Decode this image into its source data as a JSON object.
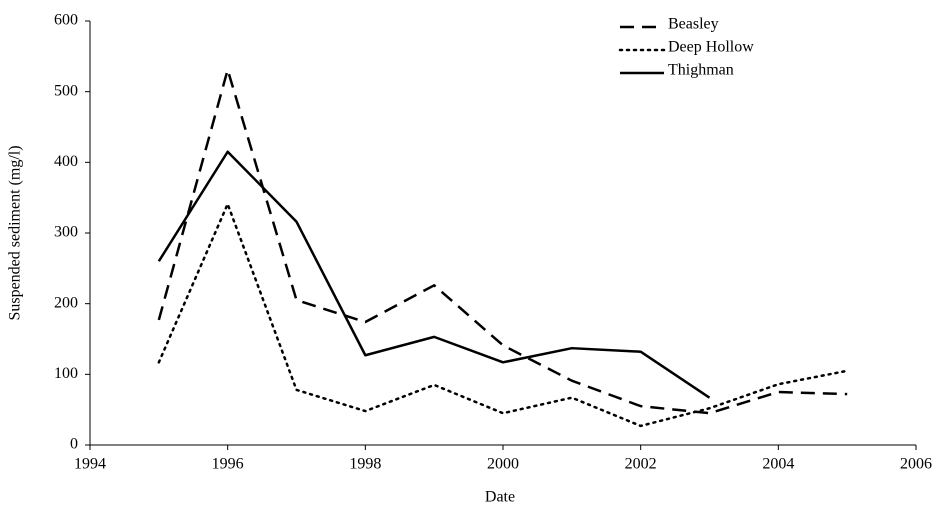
{
  "chart_data": {
    "type": "line",
    "x_label": "Date",
    "y_label": "Suspended sediment (mg/l)",
    "x": [
      1995,
      1996,
      1997,
      1998,
      1999,
      2000,
      2001,
      2002,
      2003,
      2004,
      2005
    ],
    "series": [
      {
        "name": "Beasley",
        "color": "#000000",
        "dash": "dashed",
        "values": [
          177,
          531,
          205,
          174,
          226,
          141,
          91,
          55,
          45,
          75,
          72
        ]
      },
      {
        "name": "Deep Hollow",
        "color": "#000000",
        "dash": "dotted",
        "values": [
          117,
          341,
          78,
          48,
          85,
          45,
          67,
          27,
          52,
          86,
          105
        ]
      },
      {
        "name": "Thighman",
        "color": "#000000",
        "dash": "solid",
        "values": [
          260,
          415,
          316,
          127,
          153,
          117,
          137,
          132,
          67,
          null,
          null
        ]
      }
    ],
    "xlim": [
      1994,
      2006
    ],
    "xticks": [
      1994,
      1996,
      1998,
      2000,
      2002,
      2004,
      2006
    ],
    "ylim": [
      0,
      600
    ],
    "yticks": [
      0,
      100,
      200,
      300,
      400,
      500,
      600
    ],
    "grid": false,
    "legend": "top-right"
  }
}
